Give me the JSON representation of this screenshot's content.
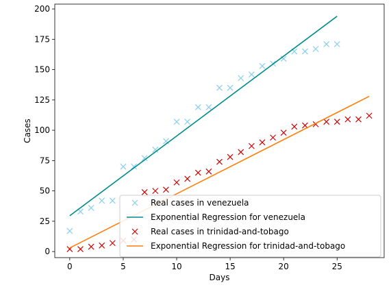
{
  "chart_data": {
    "type": "scatter",
    "title": "",
    "xlabel": "Days",
    "ylabel": "Cases",
    "xlim": [
      -1.4,
      29.4
    ],
    "ylim": [
      -5,
      204
    ],
    "xticks": [
      0,
      5,
      10,
      15,
      20,
      25
    ],
    "yticks": [
      0,
      25,
      50,
      75,
      100,
      125,
      150,
      175,
      200
    ],
    "legend_position": "lower-right",
    "grid": false,
    "series": [
      {
        "name": "Real cases in venezuela",
        "kind": "scatter",
        "marker": "x",
        "color": "#87ceeb",
        "x": [
          0,
          1,
          2,
          3,
          4,
          5,
          6,
          7,
          8,
          9,
          10,
          11,
          12,
          13,
          14,
          15,
          16,
          17,
          18,
          19,
          20,
          21,
          22,
          23,
          24,
          25
        ],
        "y": [
          17,
          33,
          36,
          42,
          42,
          70,
          70,
          77,
          84,
          91,
          107,
          107,
          119,
          119,
          135,
          135,
          143,
          146,
          153,
          155,
          159,
          165,
          165,
          167,
          171,
          171
        ]
      },
      {
        "name": "Exponential Regression for venezuela",
        "kind": "line",
        "color": "#008b8b",
        "x": [
          0,
          25
        ],
        "y": [
          29.5,
          194
        ]
      },
      {
        "name": "Real cases in trinidad-and-tobago",
        "kind": "scatter",
        "marker": "x",
        "color": "#cc0000",
        "x": [
          0,
          1,
          2,
          3,
          4,
          5,
          6,
          7,
          8,
          9,
          10,
          11,
          12,
          13,
          14,
          15,
          16,
          17,
          18,
          19,
          20,
          21,
          22,
          23,
          24,
          25,
          26,
          27,
          28
        ],
        "y": [
          2,
          2,
          4,
          5,
          7,
          9,
          10,
          49,
          50,
          51,
          57,
          60,
          65,
          66,
          74,
          78,
          82,
          87,
          90,
          94,
          98,
          103,
          104,
          105,
          107,
          107,
          109,
          109,
          112
        ]
      },
      {
        "name": "Exponential Regression for trinidad-and-tobago",
        "kind": "line",
        "color": "#ff7f0e",
        "x": [
          0,
          28
        ],
        "y": [
          3,
          128
        ]
      }
    ]
  }
}
